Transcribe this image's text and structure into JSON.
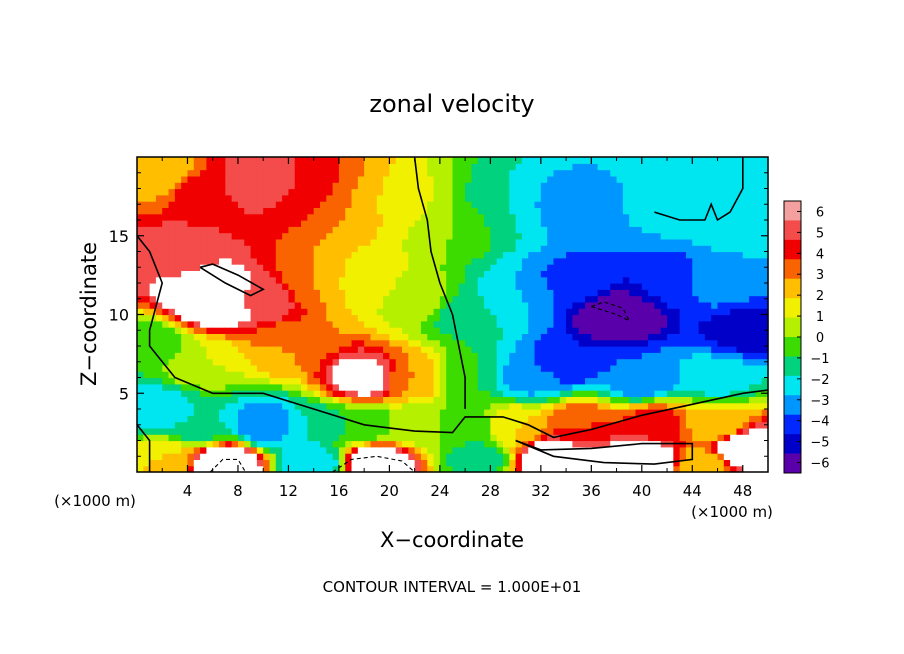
{
  "chart_data": {
    "type": "heatmap",
    "title": "zonal velocity",
    "xlabel": "X−coordinate",
    "ylabel": "Z−coordinate",
    "x_unit_left": "(×1000 m)",
    "x_unit_right": "(×1000 m)",
    "xlim": [
      0,
      50
    ],
    "ylim": [
      0,
      20
    ],
    "x_ticks": [
      4,
      8,
      12,
      16,
      20,
      24,
      28,
      32,
      36,
      40,
      44,
      48
    ],
    "y_ticks": [
      5,
      10,
      15
    ],
    "colorbar": {
      "levels": [
        6,
        5,
        4,
        3,
        2,
        1,
        0,
        -1,
        -2,
        -3,
        -4,
        -5,
        -6
      ],
      "labels": [
        "6",
        "5",
        "4",
        "3",
        "2",
        "1",
        "0",
        "−1",
        "−2",
        "−3",
        "−4",
        "−5",
        "−6"
      ],
      "colors": [
        "#f4a0a0",
        "#f44b4b",
        "#f00000",
        "#fa6400",
        "#ffbe00",
        "#f0f000",
        "#b4f000",
        "#3cdc00",
        "#00d27d",
        "#00e6f0",
        "#0096ff",
        "#0028ff",
        "#0000c8",
        "#5a00aa"
      ]
    },
    "saturated_high_color": "#ffffff",
    "contour_interval_text": "CONTOUR INTERVAL = 1.000E+01",
    "fields": [
      {
        "x": 2,
        "z": 19,
        "v": 2.0
      },
      {
        "x": 5,
        "z": 18,
        "v": 4.5
      },
      {
        "x": 9,
        "z": 18.5,
        "v": 5.6
      },
      {
        "x": 13,
        "z": 18,
        "v": 5.0
      },
      {
        "x": 17,
        "z": 17,
        "v": 3.0
      },
      {
        "x": 21,
        "z": 17,
        "v": 1.5
      },
      {
        "x": 25,
        "z": 16,
        "v": 0.0
      },
      {
        "x": 29,
        "z": 17,
        "v": -2.0
      },
      {
        "x": 34,
        "z": 17,
        "v": -3.5
      },
      {
        "x": 39,
        "z": 17,
        "v": -3.0
      },
      {
        "x": 44,
        "z": 17,
        "v": -2.3
      },
      {
        "x": 48,
        "z": 16,
        "v": -2.0
      },
      {
        "x": 3,
        "z": 14,
        "v": 5.5
      },
      {
        "x": 6,
        "z": 11,
        "v": 9.0
      },
      {
        "x": 10,
        "z": 11,
        "v": 5.8
      },
      {
        "x": 14,
        "z": 12,
        "v": 3.0
      },
      {
        "x": 18,
        "z": 12,
        "v": 1.5
      },
      {
        "x": 22,
        "z": 11,
        "v": 0.5
      },
      {
        "x": 26,
        "z": 10,
        "v": -1.5
      },
      {
        "x": 30,
        "z": 11,
        "v": -3.0
      },
      {
        "x": 35,
        "z": 12,
        "v": -4.5
      },
      {
        "x": 38,
        "z": 10,
        "v": -8.0
      },
      {
        "x": 42,
        "z": 12,
        "v": -4.8
      },
      {
        "x": 46,
        "z": 12,
        "v": -3.5
      },
      {
        "x": 48,
        "z": 9,
        "v": -5.5
      },
      {
        "x": 1,
        "z": 8,
        "v": -1.0
      },
      {
        "x": 5,
        "z": 7,
        "v": 1.0
      },
      {
        "x": 12,
        "z": 8,
        "v": 3.0
      },
      {
        "x": 18,
        "z": 6,
        "v": 7.0
      },
      {
        "x": 22,
        "z": 6,
        "v": 3.0
      },
      {
        "x": 26,
        "z": 6,
        "v": -1.0
      },
      {
        "x": 31,
        "z": 6,
        "v": -3.5
      },
      {
        "x": 34,
        "z": 7,
        "v": -5.0
      },
      {
        "x": 40,
        "z": 6,
        "v": -4.0
      },
      {
        "x": 46,
        "z": 6,
        "v": -2.5
      },
      {
        "x": 1,
        "z": 4,
        "v": -3.0
      },
      {
        "x": 5,
        "z": 3,
        "v": -2.0
      },
      {
        "x": 10,
        "z": 3,
        "v": -4.0
      },
      {
        "x": 14,
        "z": 3,
        "v": -2.0
      },
      {
        "x": 18,
        "z": 3,
        "v": -1.0
      },
      {
        "x": 22,
        "z": 3,
        "v": 0.5
      },
      {
        "x": 26,
        "z": 3,
        "v": -1.0
      },
      {
        "x": 30,
        "z": 3,
        "v": 2.0
      },
      {
        "x": 35,
        "z": 3,
        "v": 4.0
      },
      {
        "x": 41,
        "z": 3,
        "v": 4.5
      },
      {
        "x": 46,
        "z": 3,
        "v": 2.0
      },
      {
        "x": 2,
        "z": 0.8,
        "v": 2.0
      },
      {
        "x": 7,
        "z": 0.5,
        "v": 9.0
      },
      {
        "x": 14,
        "z": 0.5,
        "v": -3.0
      },
      {
        "x": 19,
        "z": 0.5,
        "v": 9.0
      },
      {
        "x": 27,
        "z": 0.8,
        "v": -1.5
      },
      {
        "x": 33,
        "z": 0.8,
        "v": 9.0
      },
      {
        "x": 40,
        "z": 0.8,
        "v": 9.0
      },
      {
        "x": 45,
        "z": 0.5,
        "v": 2.0
      },
      {
        "x": 48,
        "z": 1.5,
        "v": 9.0
      }
    ],
    "contours": [
      {
        "style": "solid",
        "points": [
          [
            0,
            15
          ],
          [
            1,
            14
          ],
          [
            2,
            12
          ],
          [
            1,
            9
          ],
          [
            1,
            8
          ],
          [
            3,
            6
          ],
          [
            6,
            5
          ],
          [
            10,
            5
          ],
          [
            14,
            4
          ],
          [
            18,
            3
          ],
          [
            22,
            2.6
          ],
          [
            25,
            2.5
          ],
          [
            26,
            3.5
          ],
          [
            29,
            3.5
          ],
          [
            31,
            3.0
          ],
          [
            33,
            2.2
          ],
          [
            36,
            2.7
          ],
          [
            40,
            3.6
          ],
          [
            44,
            4.3
          ],
          [
            48,
            5.0
          ],
          [
            50,
            5.2
          ]
        ]
      },
      {
        "style": "solid",
        "points": [
          [
            22,
            20
          ],
          [
            22.3,
            18
          ],
          [
            23,
            16
          ],
          [
            23.3,
            14
          ],
          [
            24,
            12
          ],
          [
            25,
            10
          ],
          [
            25.5,
            8
          ],
          [
            26,
            6
          ],
          [
            26,
            4
          ]
        ]
      },
      {
        "style": "solid",
        "points": [
          [
            48,
            20
          ],
          [
            48,
            18
          ],
          [
            47,
            16.5
          ],
          [
            46,
            16
          ],
          [
            45.5,
            17
          ],
          [
            45,
            16
          ],
          [
            43,
            16
          ],
          [
            41,
            16.5
          ]
        ]
      },
      {
        "style": "solid",
        "points": [
          [
            0,
            3
          ],
          [
            1,
            2
          ],
          [
            1,
            0
          ]
        ]
      },
      {
        "style": "solid",
        "points": [
          [
            5,
            13
          ],
          [
            7,
            12
          ],
          [
            9,
            11.2
          ],
          [
            10,
            11.6
          ],
          [
            8,
            12.5
          ],
          [
            6,
            13.2
          ],
          [
            5,
            13
          ]
        ]
      },
      {
        "style": "solid",
        "points": [
          [
            30,
            2
          ],
          [
            33,
            1
          ],
          [
            37,
            0.6
          ],
          [
            41,
            0.5
          ],
          [
            44,
            0.8
          ],
          [
            44,
            1.8
          ],
          [
            40,
            1.8
          ],
          [
            36,
            1.5
          ],
          [
            32,
            1.4
          ],
          [
            30,
            2
          ]
        ]
      },
      {
        "style": "dashed",
        "points": [
          [
            36,
            10.5
          ],
          [
            38,
            10
          ],
          [
            39,
            9.6
          ],
          [
            38.5,
            10.4
          ],
          [
            37,
            10.8
          ],
          [
            36,
            10.5
          ]
        ]
      },
      {
        "style": "dashed",
        "points": [
          [
            15.5,
            0
          ],
          [
            17,
            0.8
          ],
          [
            19,
            1
          ],
          [
            21,
            0.7
          ],
          [
            22,
            0
          ]
        ]
      },
      {
        "style": "dashed",
        "points": [
          [
            5.8,
            0
          ],
          [
            6.8,
            0.8
          ],
          [
            8,
            0.8
          ],
          [
            8.6,
            0
          ]
        ]
      }
    ]
  }
}
